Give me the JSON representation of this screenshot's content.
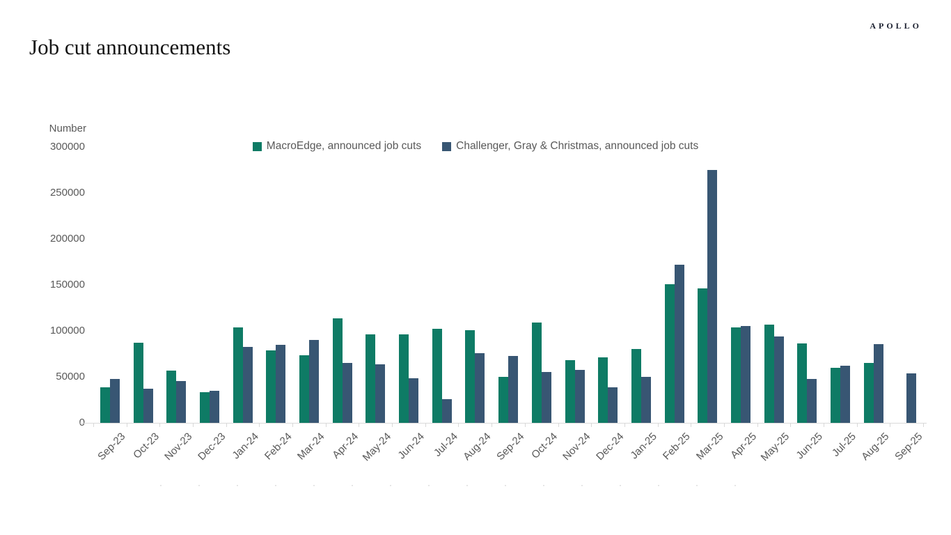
{
  "page": {
    "logo": "APOLLO",
    "title": "Job cut announcements"
  },
  "chart_data": {
    "type": "bar",
    "title": "Job cut announcements",
    "xlabel": "",
    "ylabel": "Number",
    "ylim": [
      0,
      300000
    ],
    "ytick_step": 50000,
    "yticks": [
      0,
      50000,
      100000,
      150000,
      200000,
      250000,
      300000
    ],
    "grid": false,
    "legend_position": "top-center",
    "categories": [
      "Sep-23",
      "Oct-23",
      "Nov-23",
      "Dec-23",
      "Jan-24",
      "Feb-24",
      "Mar-24",
      "Apr-24",
      "May-24",
      "Jun-24",
      "Jul-24",
      "Aug-24",
      "Sep-24",
      "Oct-24",
      "Nov-24",
      "Dec-24",
      "Jan-25",
      "Feb-25",
      "Mar-25",
      "Apr-25",
      "May-25",
      "Jun-25",
      "Jul-25",
      "Aug-25",
      "Sep-25"
    ],
    "series": [
      {
        "name": "MacroEdge, announced job cuts",
        "color": "#0e7b65",
        "values": [
          39000,
          87500,
          57000,
          33000,
          103500,
          78500,
          73500,
          114000,
          96000,
          96500,
          102000,
          100500,
          50000,
          109000,
          68000,
          71500,
          80000,
          151000,
          146000,
          103500,
          107000,
          86000,
          59500,
          65500,
          null
        ]
      },
      {
        "name": "Challenger, Gray & Christmas, announced job cuts",
        "color": "#385673",
        "values": [
          47457,
          36836,
          45510,
          34817,
          82307,
          84638,
          90309,
          64789,
          63816,
          48786,
          25885,
          75891,
          72821,
          55597,
          57727,
          38792,
          49795,
          172017,
          275240,
          105441,
          93816,
          47999,
          62075,
          85979,
          54064
        ]
      }
    ]
  }
}
